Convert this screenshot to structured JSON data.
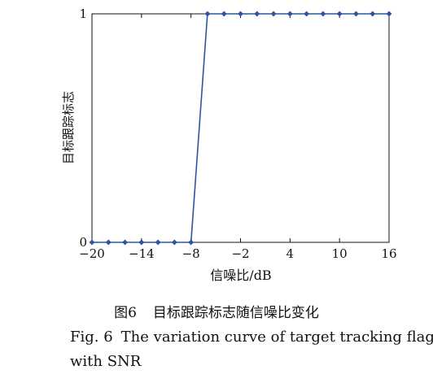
{
  "chart_data": {
    "type": "line",
    "title": "",
    "xlabel": "信噪比/dB",
    "ylabel": "目标跟踪标志",
    "xlim": [
      -20,
      16
    ],
    "ylim": [
      0,
      1
    ],
    "xticks": [
      -20,
      -14,
      -8,
      -2,
      4,
      10,
      16
    ],
    "xtick_labels": [
      "−20",
      "−14",
      "−8",
      "−2",
      "4",
      "10",
      "16"
    ],
    "yticks": [
      0,
      1
    ],
    "ytick_labels": [
      "0",
      "1"
    ],
    "grid": false,
    "color": "#2e55a0",
    "marker": "diamond",
    "series": [
      {
        "x": [
          -20,
          -18,
          -16,
          -14,
          -12,
          -10,
          -8,
          -6,
          -4,
          -2,
          0,
          2,
          4,
          6,
          8,
          10,
          12,
          14,
          16
        ],
        "y": [
          0,
          0,
          0,
          0,
          0,
          0,
          0,
          1,
          1,
          1,
          1,
          1,
          1,
          1,
          1,
          1,
          1,
          1,
          1
        ]
      }
    ]
  },
  "caption": {
    "cn_label": "图6",
    "cn_text": "目标跟踪标志随信噪比变化",
    "en_label": "Fig. 6",
    "en_line1": "The variation curve of target tracking flag",
    "en_line2": "with SNR"
  }
}
